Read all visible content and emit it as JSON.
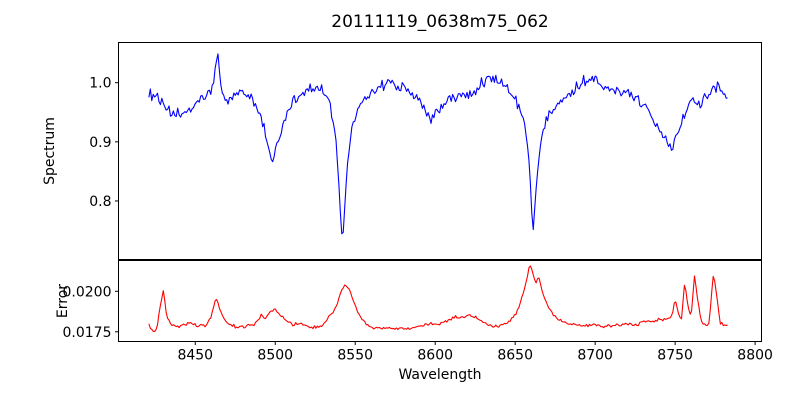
{
  "figure": {
    "background": "#ffffff",
    "axes_color": "#000000"
  },
  "chart_data": {
    "type": "line",
    "title": "20111119_0638m75_062",
    "xlabel": "Wavelength",
    "xlim": [
      8402,
      8804
    ],
    "xticks": [
      {
        "value": 8450,
        "label": "8450"
      },
      {
        "value": 8500,
        "label": "8500"
      },
      {
        "value": 8550,
        "label": "8550"
      },
      {
        "value": 8600,
        "label": "8600"
      },
      {
        "value": 8650,
        "label": "8650"
      },
      {
        "value": 8700,
        "label": "8700"
      },
      {
        "value": 8750,
        "label": "8750"
      },
      {
        "value": 8800,
        "label": "8800"
      }
    ],
    "grid": false,
    "legend": "none",
    "panels": [
      {
        "ylabel": "Spectrum",
        "ylim": [
          0.701,
          1.068
        ],
        "yticks": [
          {
            "value": 1.0,
            "label": "1.0"
          },
          {
            "value": 0.9,
            "label": "0.9"
          },
          {
            "value": 0.8,
            "label": "0.8"
          }
        ],
        "series": {
          "name": "spectrum",
          "color": "#0000ff",
          "x_start": 8421,
          "x_end": 8783,
          "x_step": 0.9,
          "noise_amplitude": 0.012,
          "noise_suppress": {
            "floor": 0.72,
            "range": 0.25,
            "min_scale": 0.3
          },
          "anchors": [
            [
              8421,
              0.978
            ],
            [
              8425,
              0.982
            ],
            [
              8430,
              0.96
            ],
            [
              8436,
              0.945
            ],
            [
              8443,
              0.95
            ],
            [
              8449,
              0.957
            ],
            [
              8455,
              0.975
            ],
            [
              8461,
              0.99
            ],
            [
              8463,
              1.03
            ],
            [
              8464,
              1.05
            ],
            [
              8466,
              0.99
            ],
            [
              8469,
              0.968
            ],
            [
              8473,
              0.977
            ],
            [
              8478,
              0.985
            ],
            [
              8484,
              0.978
            ],
            [
              8489,
              0.958
            ],
            [
              8494,
              0.915
            ],
            [
              8498,
              0.862
            ],
            [
              8502,
              0.905
            ],
            [
              8507,
              0.945
            ],
            [
              8512,
              0.972
            ],
            [
              8518,
              0.985
            ],
            [
              8524,
              0.99
            ],
            [
              8529,
              0.985
            ],
            [
              8534,
              0.968
            ],
            [
              8538,
              0.905
            ],
            [
              8542,
              0.724
            ],
            [
              8545,
              0.86
            ],
            [
              8548,
              0.925
            ],
            [
              8552,
              0.958
            ],
            [
              8557,
              0.975
            ],
            [
              8562,
              0.988
            ],
            [
              8567,
              0.995
            ],
            [
              8572,
              1.0
            ],
            [
              8578,
              0.995
            ],
            [
              8584,
              0.988
            ],
            [
              8590,
              0.968
            ],
            [
              8595,
              0.948
            ],
            [
              8598,
              0.938
            ],
            [
              8602,
              0.952
            ],
            [
              8607,
              0.968
            ],
            [
              8613,
              0.975
            ],
            [
              8620,
              0.98
            ],
            [
              8627,
              0.993
            ],
            [
              8633,
              1.008
            ],
            [
              8639,
              1.005
            ],
            [
              8645,
              0.992
            ],
            [
              8651,
              0.968
            ],
            [
              8656,
              0.93
            ],
            [
              8659,
              0.858
            ],
            [
              8661,
              0.742
            ],
            [
              8664,
              0.852
            ],
            [
              8667,
              0.918
            ],
            [
              8671,
              0.952
            ],
            [
              8677,
              0.968
            ],
            [
              8684,
              0.982
            ],
            [
              8691,
              0.998
            ],
            [
              8697,
              1.01
            ],
            [
              8703,
              1.0
            ],
            [
              8709,
              0.992
            ],
            [
              8715,
              0.988
            ],
            [
              8721,
              0.98
            ],
            [
              8727,
              0.97
            ],
            [
              8733,
              0.955
            ],
            [
              8739,
              0.93
            ],
            [
              8744,
              0.905
            ],
            [
              8748,
              0.89
            ],
            [
              8752,
              0.918
            ],
            [
              8756,
              0.95
            ],
            [
              8760,
              0.972
            ],
            [
              8764,
              0.962
            ],
            [
              8768,
              0.973
            ],
            [
              8772,
              0.985
            ],
            [
              8777,
              0.998
            ],
            [
              8780,
              0.975
            ],
            [
              8783,
              0.975
            ]
          ]
        }
      },
      {
        "ylabel": "Error",
        "ylim": [
          0.0169,
          0.0219
        ],
        "yticks": [
          {
            "value": 0.02,
            "label": "0.0200"
          },
          {
            "value": 0.0175,
            "label": "0.0175"
          }
        ],
        "series": {
          "name": "error",
          "color": "#ff0000",
          "x_start": 8421,
          "x_end": 8783,
          "x_step": 0.9,
          "noise_amplitude": 0.00012,
          "anchors": [
            [
              8421,
              0.0179
            ],
            [
              8424,
              0.01748
            ],
            [
              8426,
              0.01765
            ],
            [
              8428,
              0.019
            ],
            [
              8430,
              0.02
            ],
            [
              8432,
              0.0186
            ],
            [
              8435,
              0.0179
            ],
            [
              8439,
              0.01778
            ],
            [
              8443,
              0.0179
            ],
            [
              8447,
              0.01803
            ],
            [
              8450,
              0.01795
            ],
            [
              8453,
              0.01788
            ],
            [
              8457,
              0.01793
            ],
            [
              8460,
              0.0184
            ],
            [
              8463,
              0.01965
            ],
            [
              8465,
              0.019
            ],
            [
              8468,
              0.0182
            ],
            [
              8472,
              0.0179
            ],
            [
              8477,
              0.01778
            ],
            [
              8482,
              0.01782
            ],
            [
              8487,
              0.01795
            ],
            [
              8491,
              0.0185
            ],
            [
              8494,
              0.01835
            ],
            [
              8497,
              0.0187
            ],
            [
              8500,
              0.01895
            ],
            [
              8503,
              0.01855
            ],
            [
              8507,
              0.01822
            ],
            [
              8511,
              0.01795
            ],
            [
              8515,
              0.01805
            ],
            [
              8519,
              0.01788
            ],
            [
              8524,
              0.01778
            ],
            [
              8529,
              0.01785
            ],
            [
              8533,
              0.0184
            ],
            [
              8537,
              0.0188
            ],
            [
              8540,
              0.0196
            ],
            [
              8543,
              0.02035
            ],
            [
              8546,
              0.0202
            ],
            [
              8549,
              0.0194
            ],
            [
              8552,
              0.01865
            ],
            [
              8556,
              0.01805
            ],
            [
              8560,
              0.01778
            ],
            [
              8565,
              0.01768
            ],
            [
              8570,
              0.01772
            ],
            [
              8576,
              0.0177
            ],
            [
              8582,
              0.01768
            ],
            [
              8588,
              0.01778
            ],
            [
              8593,
              0.01792
            ],
            [
              8598,
              0.01802
            ],
            [
              8603,
              0.01795
            ],
            [
              8608,
              0.0182
            ],
            [
              8612,
              0.0184
            ],
            [
              8616,
              0.01838
            ],
            [
              8620,
              0.01852
            ],
            [
              8624,
              0.01845
            ],
            [
              8628,
              0.01825
            ],
            [
              8633,
              0.01795
            ],
            [
              8638,
              0.01786
            ],
            [
              8643,
              0.01795
            ],
            [
              8647,
              0.01815
            ],
            [
              8651,
              0.0187
            ],
            [
              8654,
              0.0195
            ],
            [
              8657,
              0.0206
            ],
            [
              8659,
              0.02175
            ],
            [
              8661,
              0.0211
            ],
            [
              8663,
              0.02055
            ],
            [
              8665,
              0.02085
            ],
            [
              8667,
              0.01995
            ],
            [
              8670,
              0.0192
            ],
            [
              8673,
              0.01862
            ],
            [
              8677,
              0.01828
            ],
            [
              8682,
              0.01802
            ],
            [
              8688,
              0.01792
            ],
            [
              8694,
              0.01786
            ],
            [
              8700,
              0.01792
            ],
            [
              8706,
              0.01783
            ],
            [
              8712,
              0.01788
            ],
            [
              8717,
              0.018
            ],
            [
              8722,
              0.01792
            ],
            [
              8727,
              0.01798
            ],
            [
              8732,
              0.01812
            ],
            [
              8737,
              0.0182
            ],
            [
              8741,
              0.01826
            ],
            [
              8745,
              0.01832
            ],
            [
              8748,
              0.01845
            ],
            [
              8750,
              0.0195
            ],
            [
              8752,
              0.0186
            ],
            [
              8754,
              0.01835
            ],
            [
              8756,
              0.0206
            ],
            [
              8758,
              0.01905
            ],
            [
              8760,
              0.01835
            ],
            [
              8762,
              0.021
            ],
            [
              8764,
              0.0196
            ],
            [
              8766,
              0.01835
            ],
            [
              8768,
              0.01792
            ],
            [
              8771,
              0.01788
            ],
            [
              8774,
              0.0211
            ],
            [
              8776,
              0.01985
            ],
            [
              8778,
              0.01805
            ],
            [
              8781,
              0.0179
            ],
            [
              8783,
              0.01795
            ]
          ]
        }
      }
    ]
  }
}
